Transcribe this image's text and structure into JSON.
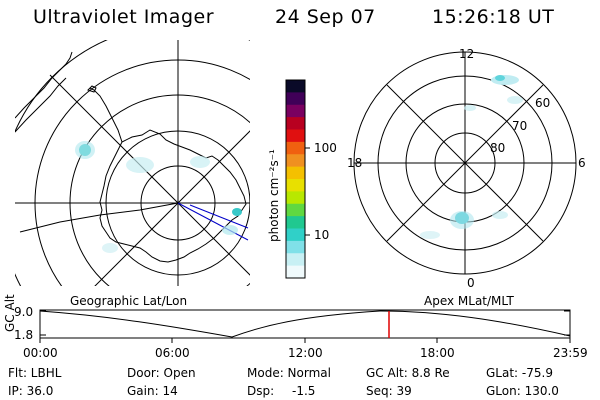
{
  "header": {
    "title": "Ultraviolet Imager",
    "date": "24 Sep 07",
    "time": "15:26:18 UT"
  },
  "geo_panel": {
    "label": "Geographic Lat/Lon"
  },
  "mag_panel": {
    "label": "Apex MLat/MLT",
    "mlt_labels": [
      "12",
      "18",
      "6",
      "0"
    ],
    "lat_labels": [
      "60",
      "70",
      "80"
    ]
  },
  "colorbar": {
    "unit": "photon cm⁻²s⁻¹",
    "tick_labels": [
      "100",
      "10"
    ],
    "colors": [
      "#0a0a28",
      "#400058",
      "#7a0060",
      "#b80020",
      "#e01010",
      "#f06010",
      "#f09020",
      "#f4c000",
      "#e8e000",
      "#b8e800",
      "#60d840",
      "#20c890",
      "#30d0c8",
      "#80e0e8",
      "#c8f0f4",
      "#f0fafc"
    ]
  },
  "altitude_plot": {
    "ylabel": "GC Alt",
    "y_ticks": [
      "9.0",
      "1.8"
    ],
    "x_ticks": [
      "00:00",
      "06:00",
      "12:00",
      "18:00",
      "23:59"
    ],
    "marker_color": "#e00000"
  },
  "status": {
    "flt": "Flt: LBHL",
    "ip": "IP: 36.0",
    "door": "Door: Open",
    "gain": "Gain: 14",
    "mode": "Mode: Normal",
    "dsp_label": "Dsp:",
    "dsp_value": "-1.5",
    "gc_alt": "GC Alt: 8.8 Re",
    "seq": "Seq: 39",
    "glat": "GLat: -75.9",
    "glon": "GLon: 130.0"
  }
}
